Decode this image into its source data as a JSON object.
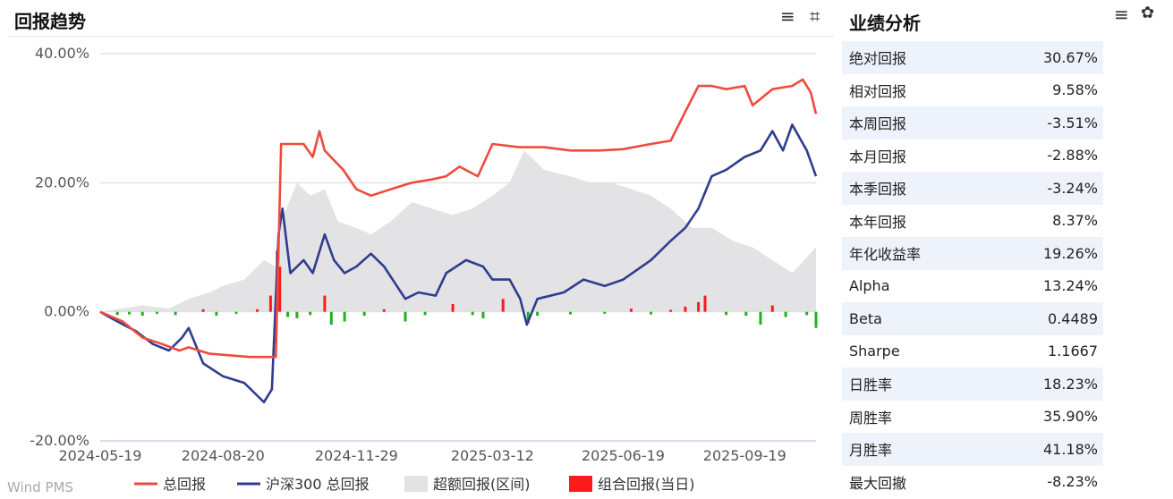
{
  "return_trend": {
    "title": "回报趋势",
    "menu_icon": "≡",
    "crop_icon": "⌗",
    "watermark": "Wind PMS"
  },
  "performance": {
    "title": "业绩分析",
    "menu_icon": "≡",
    "settings_icon": "✿",
    "metrics": [
      {
        "label": "绝对回报",
        "value": "30.67%"
      },
      {
        "label": "相对回报",
        "value": "9.58%"
      },
      {
        "label": "本周回报",
        "value": "-3.51%"
      },
      {
        "label": "本月回报",
        "value": "-2.88%"
      },
      {
        "label": "本季回报",
        "value": "-3.24%"
      },
      {
        "label": "本年回报",
        "value": "8.37%"
      },
      {
        "label": "年化收益率",
        "value": "19.26%"
      },
      {
        "label": "Alpha",
        "value": "13.24%"
      },
      {
        "label": "Beta",
        "value": "0.4489"
      },
      {
        "label": "Sharpe",
        "value": "1.1667"
      },
      {
        "label": "日胜率",
        "value": "18.23%"
      },
      {
        "label": "周胜率",
        "value": "35.90%"
      },
      {
        "label": "月胜率",
        "value": "41.18%"
      },
      {
        "label": "最大回撤",
        "value": "-8.23%"
      }
    ]
  },
  "chart_data": {
    "type": "line",
    "y_ticks": [
      "40.00%",
      "20.00%",
      "0.00%",
      "-20.00%"
    ],
    "ylim": [
      -20,
      40
    ],
    "x_ticks": [
      "2024-05-19",
      "2024-08-20",
      "2024-11-29",
      "2025-03-12",
      "2025-06-19",
      "2025-09-19"
    ],
    "x_range": [
      "2024-05-19",
      "2025-11-12"
    ],
    "colors": {
      "total": "#f04a3e",
      "hs300": "#2e3d8f",
      "excess": "#e3e3e5",
      "daily_pos": "#ff1a1a",
      "daily_neg": "#22b022",
      "grid": "#d8d8d8"
    },
    "series": [
      {
        "name": "总回报",
        "key": "total",
        "points": [
          [
            "2024-05-19",
            0
          ],
          [
            "2024-06-05",
            -1.5
          ],
          [
            "2024-06-20",
            -4
          ],
          [
            "2024-07-05",
            -5
          ],
          [
            "2024-07-18",
            -6
          ],
          [
            "2024-07-25",
            -5.5
          ],
          [
            "2024-08-10",
            -6.5
          ],
          [
            "2024-08-28",
            -6.8
          ],
          [
            "2024-09-09",
            -7
          ],
          [
            "2024-09-24",
            -7
          ],
          [
            "2024-09-29",
            -7
          ],
          [
            "2024-10-03",
            26
          ],
          [
            "2024-10-20",
            26
          ],
          [
            "2024-10-27",
            24
          ],
          [
            "2024-11-01",
            28
          ],
          [
            "2024-11-05",
            25
          ],
          [
            "2024-11-19",
            22
          ],
          [
            "2024-11-29",
            19
          ],
          [
            "2024-12-10",
            18
          ],
          [
            "2024-12-25",
            19
          ],
          [
            "2025-01-10",
            20
          ],
          [
            "2025-01-25",
            20.5
          ],
          [
            "2025-02-05",
            21
          ],
          [
            "2025-02-15",
            22.5
          ],
          [
            "2025-03-01",
            21
          ],
          [
            "2025-03-12",
            26
          ],
          [
            "2025-04-01",
            25.5
          ],
          [
            "2025-04-20",
            25.5
          ],
          [
            "2025-05-10",
            25
          ],
          [
            "2025-06-01",
            25
          ],
          [
            "2025-06-19",
            25.2
          ],
          [
            "2025-07-10",
            26
          ],
          [
            "2025-07-25",
            26.5
          ],
          [
            "2025-08-05",
            31
          ],
          [
            "2025-08-15",
            35
          ],
          [
            "2025-08-25",
            35
          ],
          [
            "2025-09-05",
            34.5
          ],
          [
            "2025-09-19",
            35
          ],
          [
            "2025-09-25",
            32
          ],
          [
            "2025-10-10",
            34.5
          ],
          [
            "2025-10-25",
            35
          ],
          [
            "2025-11-02",
            36
          ],
          [
            "2025-11-08",
            34
          ],
          [
            "2025-11-12",
            30.67
          ]
        ]
      },
      {
        "name": "沪深300 总回报",
        "key": "hs300",
        "points": [
          [
            "2024-05-19",
            0
          ],
          [
            "2024-06-01",
            -1.5
          ],
          [
            "2024-06-15",
            -3
          ],
          [
            "2024-06-28",
            -5
          ],
          [
            "2024-07-10",
            -6
          ],
          [
            "2024-07-20",
            -4
          ],
          [
            "2024-07-25",
            -2.5
          ],
          [
            "2024-08-05",
            -8
          ],
          [
            "2024-08-20",
            -10
          ],
          [
            "2024-09-05",
            -11
          ],
          [
            "2024-09-15",
            -13
          ],
          [
            "2024-09-20",
            -14
          ],
          [
            "2024-09-26",
            -12
          ],
          [
            "2024-10-01",
            12
          ],
          [
            "2024-10-04",
            16
          ],
          [
            "2024-10-10",
            6
          ],
          [
            "2024-10-20",
            8
          ],
          [
            "2024-10-27",
            6
          ],
          [
            "2024-11-05",
            12
          ],
          [
            "2024-11-12",
            8
          ],
          [
            "2024-11-20",
            6
          ],
          [
            "2024-11-29",
            7
          ],
          [
            "2024-12-10",
            9
          ],
          [
            "2024-12-20",
            7
          ],
          [
            "2025-01-05",
            2
          ],
          [
            "2025-01-15",
            3
          ],
          [
            "2025-01-28",
            2.5
          ],
          [
            "2025-02-05",
            6
          ],
          [
            "2025-02-20",
            8
          ],
          [
            "2025-03-05",
            7
          ],
          [
            "2025-03-12",
            5
          ],
          [
            "2025-03-25",
            5
          ],
          [
            "2025-04-02",
            2
          ],
          [
            "2025-04-07",
            -2
          ],
          [
            "2025-04-15",
            2
          ],
          [
            "2025-05-05",
            3
          ],
          [
            "2025-05-20",
            5
          ],
          [
            "2025-06-05",
            4
          ],
          [
            "2025-06-19",
            5
          ],
          [
            "2025-07-10",
            8
          ],
          [
            "2025-07-25",
            11
          ],
          [
            "2025-08-05",
            13
          ],
          [
            "2025-08-15",
            16
          ],
          [
            "2025-08-25",
            21
          ],
          [
            "2025-09-05",
            22
          ],
          [
            "2025-09-19",
            24
          ],
          [
            "2025-10-01",
            25
          ],
          [
            "2025-10-10",
            28
          ],
          [
            "2025-10-18",
            25
          ],
          [
            "2025-10-25",
            29
          ],
          [
            "2025-11-05",
            25
          ],
          [
            "2025-11-12",
            21
          ]
        ]
      },
      {
        "name": "超额回报(区间)",
        "key": "excess",
        "points": [
          [
            "2024-05-19",
            0
          ],
          [
            "2024-06-20",
            1
          ],
          [
            "2024-07-10",
            0.5
          ],
          [
            "2024-07-25",
            2
          ],
          [
            "2024-08-10",
            3
          ],
          [
            "2024-08-20",
            4
          ],
          [
            "2024-09-05",
            5
          ],
          [
            "2024-09-20",
            8
          ],
          [
            "2024-09-29",
            7
          ],
          [
            "2024-10-03",
            14
          ],
          [
            "2024-10-15",
            20
          ],
          [
            "2024-10-25",
            18
          ],
          [
            "2024-11-05",
            19
          ],
          [
            "2024-11-15",
            14
          ],
          [
            "2024-11-29",
            13
          ],
          [
            "2024-12-10",
            12
          ],
          [
            "2024-12-25",
            14
          ],
          [
            "2025-01-10",
            17
          ],
          [
            "2025-01-25",
            16
          ],
          [
            "2025-02-10",
            15
          ],
          [
            "2025-02-25",
            16
          ],
          [
            "2025-03-12",
            18
          ],
          [
            "2025-03-25",
            20
          ],
          [
            "2025-04-05",
            25
          ],
          [
            "2025-04-20",
            22
          ],
          [
            "2025-05-10",
            21
          ],
          [
            "2025-05-25",
            20
          ],
          [
            "2025-06-10",
            20
          ],
          [
            "2025-06-25",
            19
          ],
          [
            "2025-07-10",
            18
          ],
          [
            "2025-07-25",
            16
          ],
          [
            "2025-08-10",
            13
          ],
          [
            "2025-08-25",
            13
          ],
          [
            "2025-09-10",
            11
          ],
          [
            "2025-09-25",
            10
          ],
          [
            "2025-10-10",
            8
          ],
          [
            "2025-10-25",
            6
          ],
          [
            "2025-11-12",
            10
          ]
        ]
      },
      {
        "name": "组合回报(当日)",
        "key": "daily",
        "points": [
          [
            "2024-06-01",
            -0.5
          ],
          [
            "2024-06-10",
            -0.4
          ],
          [
            "2024-06-20",
            -0.6
          ],
          [
            "2024-07-01",
            -0.3
          ],
          [
            "2024-07-15",
            -0.5
          ],
          [
            "2024-08-05",
            0.4
          ],
          [
            "2024-08-15",
            -0.6
          ],
          [
            "2024-08-30",
            -0.3
          ],
          [
            "2024-09-15",
            0.4
          ],
          [
            "2024-09-25",
            2.5
          ],
          [
            "2024-09-30",
            9.5
          ],
          [
            "2024-10-02",
            7
          ],
          [
            "2024-10-08",
            -0.8
          ],
          [
            "2024-10-15",
            -1
          ],
          [
            "2024-10-25",
            -0.5
          ],
          [
            "2024-11-05",
            2.5
          ],
          [
            "2024-11-10",
            -2
          ],
          [
            "2024-11-20",
            -1.5
          ],
          [
            "2024-12-05",
            -0.6
          ],
          [
            "2024-12-20",
            0.4
          ],
          [
            "2025-01-05",
            -1.5
          ],
          [
            "2025-01-20",
            -0.5
          ],
          [
            "2025-02-10",
            1.2
          ],
          [
            "2025-02-25",
            -0.5
          ],
          [
            "2025-03-05",
            -1
          ],
          [
            "2025-03-20",
            2
          ],
          [
            "2025-04-08",
            -1.8
          ],
          [
            "2025-04-15",
            -0.6
          ],
          [
            "2025-05-10",
            -0.4
          ],
          [
            "2025-06-05",
            -0.3
          ],
          [
            "2025-06-25",
            0.5
          ],
          [
            "2025-07-10",
            -0.4
          ],
          [
            "2025-07-25",
            0.3
          ],
          [
            "2025-08-05",
            0.8
          ],
          [
            "2025-08-15",
            1.5
          ],
          [
            "2025-08-20",
            2.5
          ],
          [
            "2025-09-05",
            -0.5
          ],
          [
            "2025-09-20",
            -0.6
          ],
          [
            "2025-10-01",
            -2
          ],
          [
            "2025-10-10",
            1
          ],
          [
            "2025-10-20",
            -0.8
          ],
          [
            "2025-11-05",
            -0.5
          ],
          [
            "2025-11-12",
            -2.5
          ]
        ]
      }
    ]
  }
}
